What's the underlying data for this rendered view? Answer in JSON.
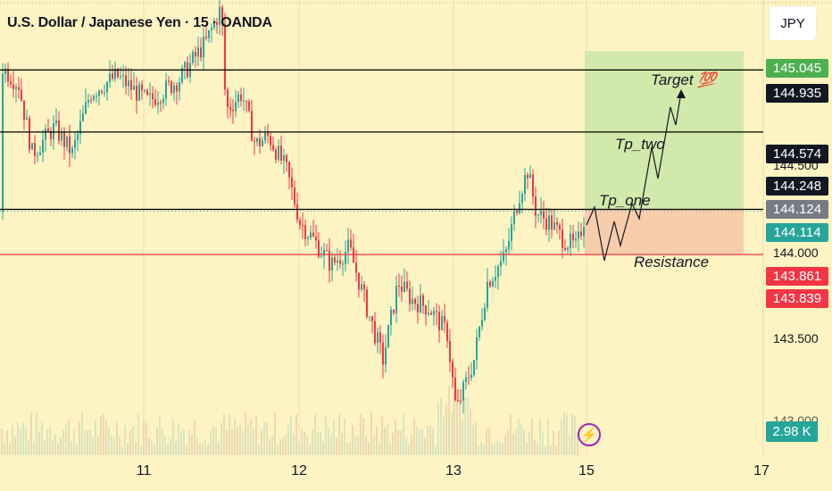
{
  "header": {
    "symbol_title": "U.S. Dollar / Japanese Yen · 15 · OANDA",
    "currency_label": "JPY"
  },
  "price_axis": {
    "ticks": [
      "144.500",
      "144.000",
      "143.500",
      "143.000"
    ],
    "badges": [
      {
        "label": "145.045",
        "bg": "#4caf50",
        "fg": "#ffffff"
      },
      {
        "label": "144.935",
        "bg": "#131722",
        "fg": "#ffffff"
      },
      {
        "label": "144.574",
        "bg": "#131722",
        "fg": "#ffffff"
      },
      {
        "label": "144.248",
        "bg": "#131722",
        "fg": "#ffffff"
      },
      {
        "label": "144.124",
        "bg": "#787b86",
        "fg": "#ffffff"
      },
      {
        "label": "144.114",
        "bg": "#26a69a",
        "fg": "#ffffff"
      },
      {
        "label": "143.861",
        "bg": "#f23645",
        "fg": "#ffffff"
      },
      {
        "label": "143.839",
        "bg": "#f23645",
        "fg": "#ffffff"
      }
    ]
  },
  "time_axis": {
    "ticks": [
      "11",
      "12",
      "13",
      "15",
      "17"
    ]
  },
  "volume": {
    "last_label": "2.98 K"
  },
  "annotations": {
    "target": "Target 💯",
    "tp_two": "Tp_two",
    "tp_one": "Tp_one",
    "resistance": "Resistance"
  },
  "chart_data": {
    "type": "candlestick",
    "instrument": "U.S. Dollar / Japanese Yen",
    "interval": "15",
    "source": "OANDA",
    "horizontal_lines": [
      {
        "price": 144.935,
        "color": "#000000"
      },
      {
        "price": 144.574,
        "color": "#000000"
      },
      {
        "price": 144.124,
        "color": "#000000"
      },
      {
        "price": 143.861,
        "color": "#f23645"
      }
    ],
    "current_price": 144.114,
    "target_zone": {
      "from": 144.124,
      "to": 145.045
    },
    "stop_zone": {
      "from": 143.861,
      "to": 144.124
    },
    "y_range": [
      142.9,
      145.3
    ],
    "colors": {
      "up": "#26a69a",
      "down": "#f23645",
      "target": "#c9e6a7",
      "stop": "#f7c6a8"
    }
  }
}
